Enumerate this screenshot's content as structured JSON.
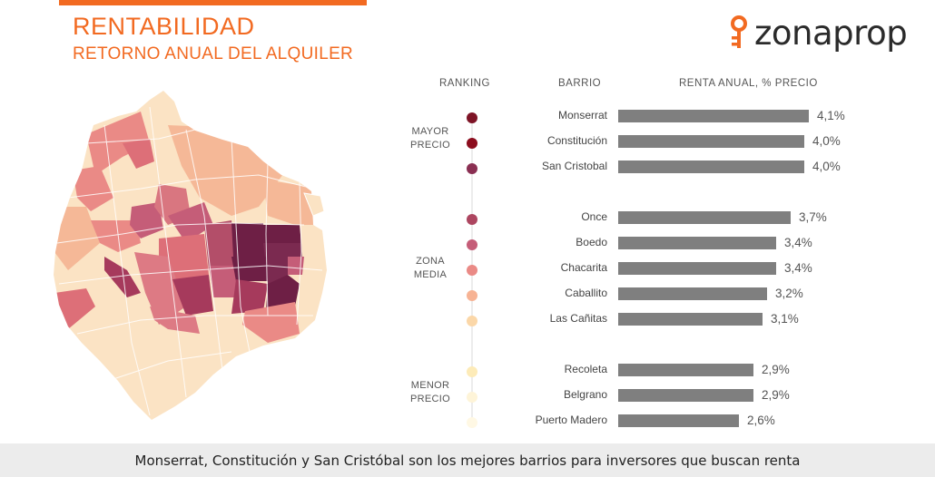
{
  "header": {
    "title": "RENTABILIDAD",
    "subtitle": "RETORNO ANUAL DEL ALQUILER",
    "brand": "zonaprop"
  },
  "columns": {
    "ranking": "RANKING",
    "barrio": "BARRIO",
    "renta": "RENTA ANUAL, % PRECIO"
  },
  "groups": {
    "top": [
      "MAYOR",
      "PRECIO"
    ],
    "mid": [
      "ZONA",
      "MEDIA"
    ],
    "low": [
      "MENOR",
      "PRECIO"
    ]
  },
  "colors": {
    "accent": "#f26a21",
    "bar": "#7f7f7f",
    "ranking": [
      "#7e1426",
      "#8c0d1e",
      "#8a2f52",
      "#ad4660",
      "#c55d78",
      "#ea8a86",
      "#f7b394",
      "#fbd7a8",
      "#fdebb8",
      "#fef4d8",
      "#fff8e4"
    ]
  },
  "chart_data": {
    "type": "bar",
    "orientation": "horizontal",
    "title": "RENTABILIDAD",
    "subtitle": "RETORNO ANUAL DEL ALQUILER",
    "categories": [
      "Monserrat",
      "Constitución",
      "San Cristobal",
      "Once",
      "Boedo",
      "Chacarita",
      "Caballito",
      "Las Cañitas",
      "Recoleta",
      "Belgrano",
      "Puerto Madero"
    ],
    "values": [
      4.1,
      4.0,
      4.0,
      3.7,
      3.4,
      3.4,
      3.2,
      3.1,
      2.9,
      2.9,
      2.6
    ],
    "value_labels": [
      "4,1%",
      "4,0%",
      "4,0%",
      "3,7%",
      "3,4%",
      "3,4%",
      "3,2%",
      "3,1%",
      "2,9%",
      "2,9%",
      "2,6%"
    ],
    "xlabel": "RENTA ANUAL, % PRECIO",
    "ylabel": "BARRIO",
    "xlim": [
      0,
      4.1
    ],
    "grid": false,
    "legend": "none"
  },
  "footer": {
    "text": "Monserrat, Constitución y San Cristóbal son los mejores barrios para inversores que buscan renta"
  }
}
